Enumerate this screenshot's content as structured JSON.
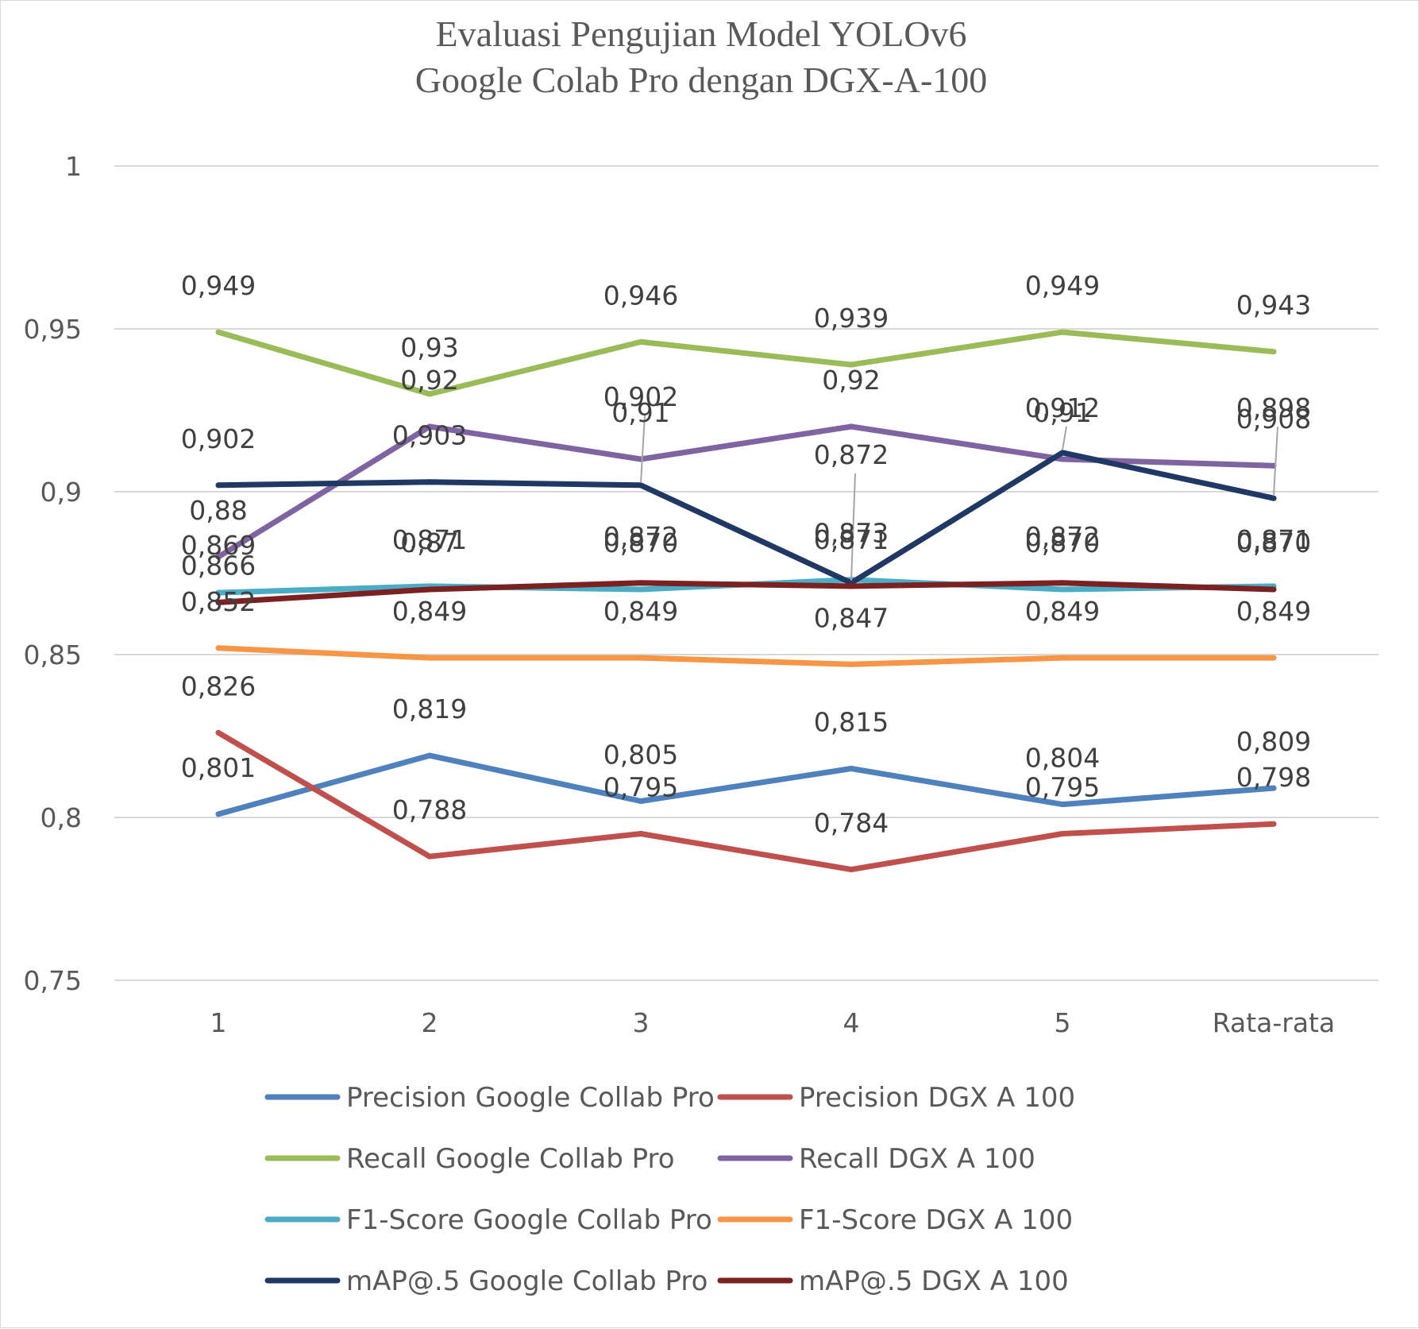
{
  "chart_data": {
    "type": "line",
    "title": "Evaluasi Pengujian Model YOLOv6",
    "subtitle": "Google Colab Pro dengan DGX-A-100",
    "categories": [
      "1",
      "2",
      "3",
      "4",
      "5",
      "Rata-rata"
    ],
    "ylim": [
      0.75,
      1
    ],
    "yticks": [
      0.75,
      0.8,
      0.85,
      0.9,
      0.95,
      1
    ],
    "ytick_labels": [
      "0,75",
      "0,8",
      "0,85",
      "0,9",
      "0,95",
      "1"
    ],
    "grid": true,
    "legend_position": "bottom",
    "series": [
      {
        "name": "Precision Google Collab Pro",
        "color": "#4f81bd",
        "values": [
          0.801,
          0.819,
          0.805,
          0.815,
          0.804,
          0.809
        ],
        "labels": [
          "0,801",
          "0,819",
          "0,805",
          "0,815",
          "0,804",
          "0,809"
        ]
      },
      {
        "name": "Precision DGX A 100",
        "color": "#c0504d",
        "values": [
          0.826,
          0.788,
          0.795,
          0.784,
          0.795,
          0.798
        ],
        "labels": [
          "0,826",
          "0,788",
          "0,795",
          "0,784",
          "0,795",
          "0,798"
        ]
      },
      {
        "name": "Recall Google Collab Pro",
        "color": "#9bbb59",
        "values": [
          0.949,
          0.93,
          0.946,
          0.939,
          0.949,
          0.943
        ],
        "labels": [
          "0,949",
          "0,93",
          "0,946",
          "0,939",
          "0,949",
          "0,943"
        ]
      },
      {
        "name": "Recall DGX A 100",
        "color": "#8064a2",
        "values": [
          0.88,
          0.92,
          0.91,
          0.92,
          0.91,
          0.908
        ],
        "labels": [
          "0,88",
          "0,92",
          "0,91",
          "0,92",
          "0,91",
          "0,908"
        ]
      },
      {
        "name": "F1-Score Google Collab Pro",
        "color": "#4bacc6",
        "values": [
          0.869,
          0.871,
          0.87,
          0.873,
          0.87,
          0.871
        ],
        "labels": [
          "0,869",
          "0,871",
          "0,870",
          "0,873",
          "0,870",
          "0,871"
        ]
      },
      {
        "name": "F1-Score DGX A 100",
        "color": "#f79646",
        "values": [
          0.852,
          0.849,
          0.849,
          0.847,
          0.849,
          0.849
        ],
        "labels": [
          "0,852",
          "0,849",
          "0,849",
          "0,847",
          "0,849",
          "0,849"
        ]
      },
      {
        "name": "mAP@.5 Google Collab Pro",
        "color": "#1f3864",
        "values": [
          0.902,
          0.903,
          0.902,
          0.872,
          0.912,
          0.898
        ],
        "labels": [
          "0,902",
          "0,903",
          "0,902",
          "0,872",
          "0,912",
          "0,898"
        ]
      },
      {
        "name": "mAP@.5 DGX A 100",
        "color": "#7b2121",
        "values": [
          0.866,
          0.87,
          0.872,
          0.871,
          0.872,
          0.87
        ],
        "labels": [
          "0,866",
          "0,87",
          "0,872",
          "0,871",
          "0,872",
          "0,870"
        ]
      }
    ]
  }
}
